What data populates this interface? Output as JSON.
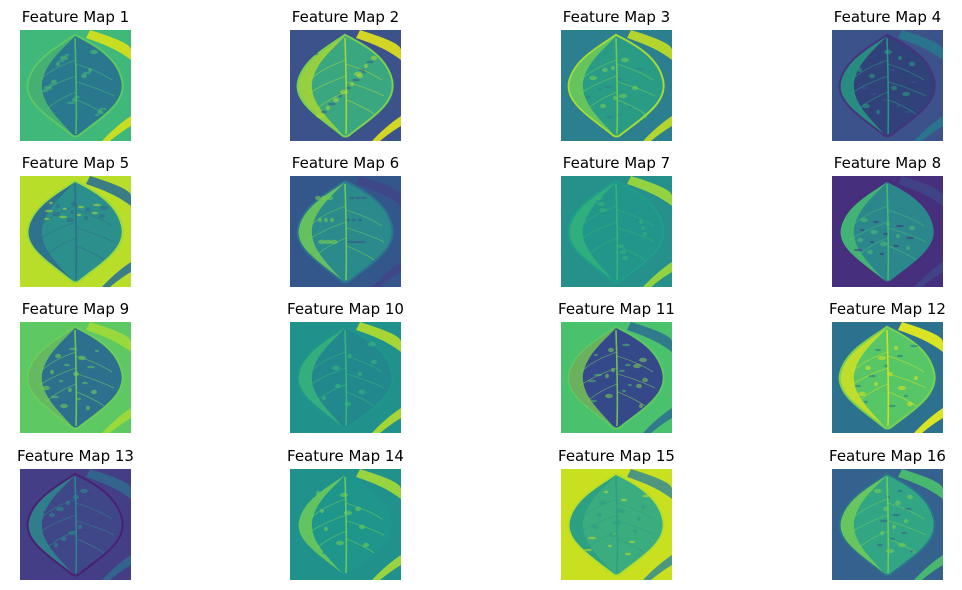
{
  "figure": {
    "colormap": "viridis",
    "colors": {
      "dark": "#440154",
      "blue": "#3b528b",
      "teal": "#21918c",
      "green": "#5ec962",
      "yellow": "#fde725"
    },
    "maps": [
      {
        "title": "Feature Map 1",
        "bg": "#3fb87a",
        "leaf": "#2a788e",
        "edge": "#4fc36b",
        "stem": "#d8e219",
        "rim": "#5ec962"
      },
      {
        "title": "Feature Map 2",
        "bg": "#3b528b",
        "leaf": "#3aa780",
        "edge": "#b5de2b",
        "stem": "#e5e419",
        "rim": "#7ad151"
      },
      {
        "title": "Feature Map 3",
        "bg": "#2c7f8e",
        "leaf": "#2a9c85",
        "edge": "#7ad151",
        "stem": "#c2df23",
        "rim": "#a5db36"
      },
      {
        "title": "Feature Map 4",
        "bg": "#3b528b",
        "leaf": "#31427a",
        "edge": "#25a584",
        "stem": "#2a788e",
        "rim": "#46337e"
      },
      {
        "title": "Feature Map 5",
        "bg": "#b8de29",
        "leaf": "#2b8f8b",
        "edge": "#31688e",
        "stem": "#2c728e",
        "rim": "#9bd93c"
      },
      {
        "title": "Feature Map 6",
        "bg": "#33568b",
        "leaf": "#2a8a8c",
        "edge": "#7ad151",
        "stem": "#3f4788",
        "rim": "#2c728e"
      },
      {
        "title": "Feature Map 7",
        "bg": "#26908b",
        "leaf": "#22968a",
        "edge": "#35b779",
        "stem": "#a0da39",
        "rim": "#1f9e89"
      },
      {
        "title": "Feature Map 8",
        "bg": "#46307e",
        "leaf": "#2c878d",
        "edge": "#4ac16d",
        "stem": "#3f4788",
        "rim": "#472d7b"
      },
      {
        "title": "Feature Map 9",
        "bg": "#5ec962",
        "leaf": "#2d708e",
        "edge": "#7ad151",
        "stem": "#a0da39",
        "rim": "#6ccd5a"
      },
      {
        "title": "Feature Map 10",
        "bg": "#21918c",
        "leaf": "#23888e",
        "edge": "#3bbb75",
        "stem": "#b5de2b",
        "rim": "#1f968b"
      },
      {
        "title": "Feature Map 11",
        "bg": "#4ac16d",
        "leaf": "#34488a",
        "edge": "#7fd34e",
        "stem": "#2c728e",
        "rim": "#5ec962"
      },
      {
        "title": "Feature Map 12",
        "bg": "#2c728e",
        "leaf": "#56c667",
        "edge": "#e2e418",
        "stem": "#ecf11a",
        "rim": "#7ad151"
      },
      {
        "title": "Feature Map 13",
        "bg": "#433e85",
        "leaf": "#3f4788",
        "edge": "#2c8f8c",
        "stem": "#31688e",
        "rim": "#482173"
      },
      {
        "title": "Feature Map 14",
        "bg": "#21918c",
        "leaf": "#1f968b",
        "edge": "#7ad151",
        "stem": "#a5db36",
        "rim": "#20928c"
      },
      {
        "title": "Feature Map 15",
        "bg": "#c8e020",
        "leaf": "#3bac7e",
        "edge": "#2a9c85",
        "stem": "#3f8f8a",
        "rim": "#b5de2b"
      },
      {
        "title": "Feature Map 16",
        "bg": "#34618d",
        "leaf": "#32a585",
        "edge": "#7ad151",
        "stem": "#4ac16d",
        "rim": "#2c728e"
      }
    ]
  }
}
